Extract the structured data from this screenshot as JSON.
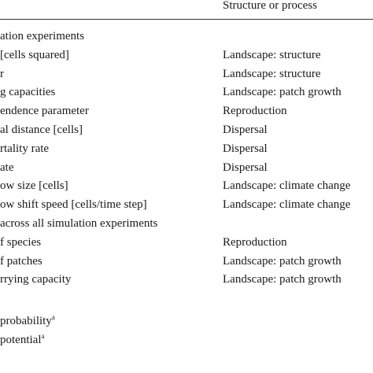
{
  "header": {
    "structure": "Structure or process"
  },
  "table": {
    "rows": [
      [
        "ation experiments",
        ""
      ],
      [
        "[cells squared]",
        "Landscape: structure"
      ],
      [
        "r",
        "Landscape: structure"
      ],
      [
        "g capacities",
        "Landscape: patch growth"
      ],
      [
        "endence parameter",
        "Reproduction"
      ],
      [
        "al distance [cells]",
        "Dispersal"
      ],
      [
        "rtality rate",
        "Dispersal"
      ],
      [
        "ate",
        "Dispersal"
      ],
      [
        "ow size [cells]",
        "Landscape: climate change"
      ],
      [
        "ow shift speed [cells/time step]",
        "Landscape: climate change"
      ],
      [
        " across all simulation experiments",
        ""
      ],
      [
        "f species",
        "Reproduction"
      ],
      [
        "f patches",
        "Landscape: patch growth"
      ],
      [
        "rrying capacity",
        "Landscape: patch growth"
      ],
      [
        "",
        ""
      ],
      [
        "probability",
        ""
      ],
      [
        "potential",
        ""
      ]
    ]
  },
  "footnote_mark": "a"
}
